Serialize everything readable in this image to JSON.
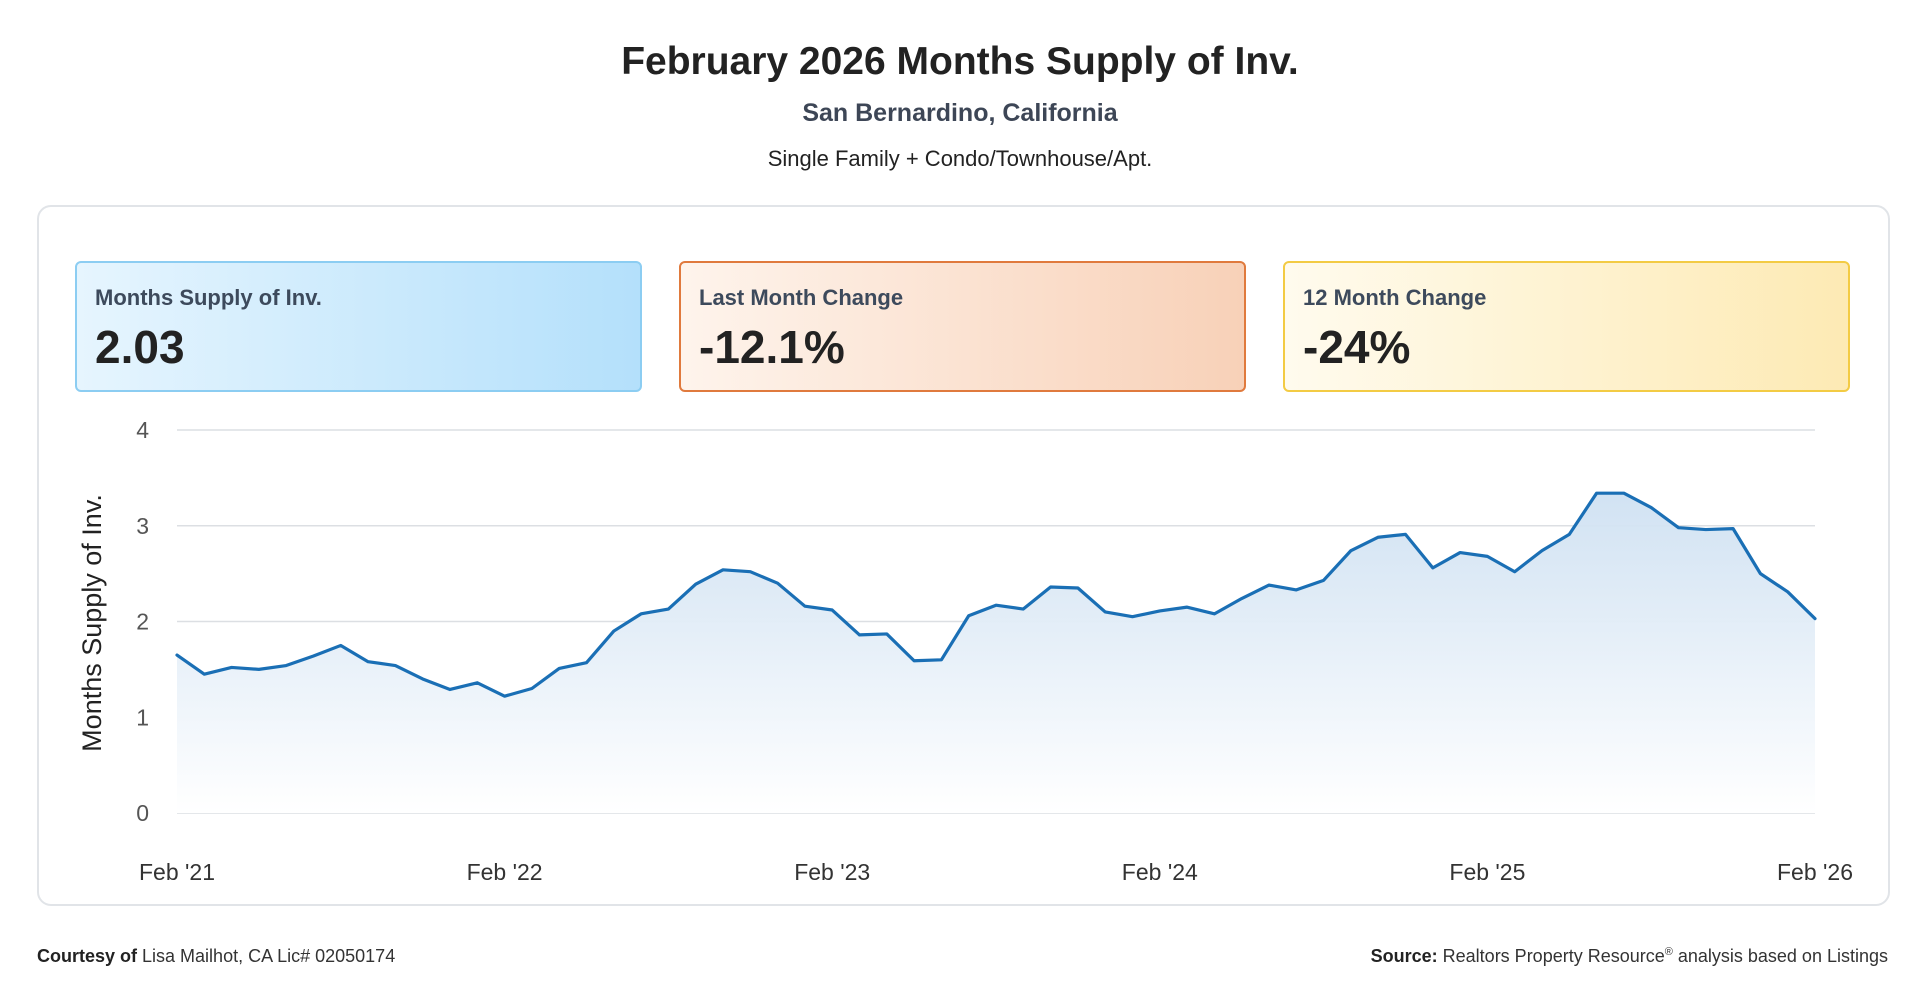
{
  "header": {
    "title": "February 2026 Months Supply of Inv.",
    "location": "San Bernardino, California",
    "property_type": "Single Family + Condo/Townhouse/Apt."
  },
  "cards": [
    {
      "label": "Months Supply of Inv.",
      "value": "2.03"
    },
    {
      "label": "Last Month Change",
      "value": "-12.1%"
    },
    {
      "label": "12 Month Change",
      "value": "-24%"
    }
  ],
  "footer": {
    "courtesy_label": "Courtesy of",
    "courtesy_text": "Lisa Mailhot, CA Lic# 02050174",
    "source_label": "Source:",
    "source_text_1": "Realtors Property Resource",
    "source_sup": "®",
    "source_text_2": " analysis based on Listings"
  },
  "colors": {
    "line": "#1a6fb5",
    "area_top": "#cfe1f2",
    "area_bottom": "#ffffff",
    "grid": "#dcdfe3"
  },
  "chart_data": {
    "type": "area",
    "title": "",
    "xlabel": "",
    "ylabel": "Months Supply of Inv.",
    "ylim": [
      0,
      4
    ],
    "yticks": [
      0,
      1,
      2,
      3,
      4
    ],
    "x_tick_labels": [
      "Feb '21",
      "Feb '22",
      "Feb '23",
      "Feb '24",
      "Feb '25",
      "Feb '26"
    ],
    "x_tick_positions": [
      0,
      12,
      24,
      36,
      48,
      60
    ],
    "grid": true,
    "legend": "none",
    "series": [
      {
        "values": [
          1.65,
          1.45,
          1.52,
          1.5,
          1.54,
          1.64,
          1.75,
          1.58,
          1.54,
          1.4,
          1.29,
          1.36,
          1.22,
          1.3,
          1.51,
          1.57,
          1.9,
          2.08,
          2.13,
          2.39,
          2.54,
          2.52,
          2.4,
          2.16,
          2.12,
          1.86,
          1.87,
          1.59,
          1.6,
          2.06,
          2.17,
          2.13,
          2.36,
          2.35,
          2.1,
          2.05,
          2.11,
          2.15,
          2.08,
          2.24,
          2.38,
          2.33,
          2.43,
          2.74,
          2.88,
          2.91,
          2.56,
          2.72,
          2.68,
          2.52,
          2.74,
          2.91,
          3.34,
          3.34,
          3.19,
          2.98,
          2.96,
          2.97,
          2.5,
          2.31,
          2.03
        ]
      }
    ]
  }
}
